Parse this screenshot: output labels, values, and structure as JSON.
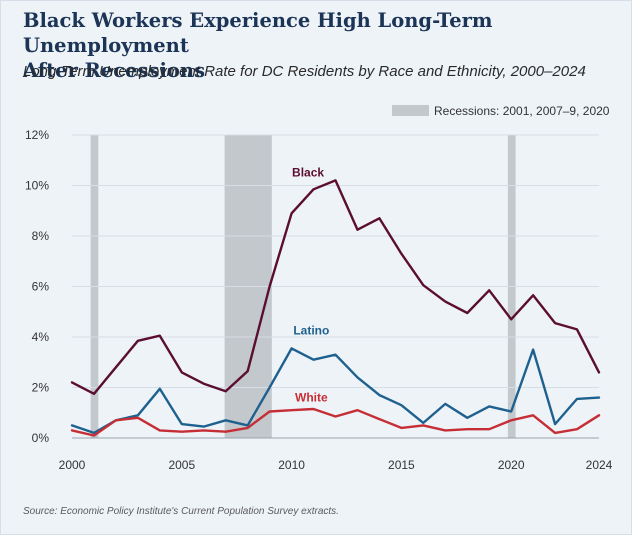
{
  "header": {
    "title_line1": "Black Workers Experience High Long-Term Unemployment",
    "title_line2": "After Recessions",
    "subtitle": "Long-Term Unemployment Rate for DC Residents by Race and Ethnicity, 2000–2024"
  },
  "source": "Source: Economic Policy Institute's Current Population Survey extracts.",
  "colors": {
    "black": "#5b0f2e",
    "latino": "#1f618e",
    "white": "#c62e35",
    "recession": "#c3c8cd",
    "grid": "#d7dde4",
    "axis_text": "#333333"
  },
  "chart_data": {
    "type": "line",
    "title": "Long-Term Unemployment Rate for DC Residents by Race and Ethnicity, 2000–2024",
    "xlabel": "",
    "ylabel": "",
    "xlim": [
      2000,
      2024
    ],
    "ylim": [
      0,
      12
    ],
    "y_ticks": [
      0,
      2,
      4,
      6,
      8,
      10,
      12
    ],
    "y_tick_labels": [
      "0%",
      "2%",
      "4%",
      "6%",
      "8%",
      "10%",
      "12%"
    ],
    "x_ticks": [
      2000,
      2005,
      2010,
      2015,
      2020,
      2024
    ],
    "x_tick_labels": [
      "2000",
      "2005",
      "2010",
      "2015",
      "2020",
      "2024"
    ],
    "grid": true,
    "legend": {
      "label": "Recessions: 2001, 2007–9, 2020",
      "position": "top-right"
    },
    "recessions": [
      {
        "start": 2000.85,
        "end": 2001.2
      },
      {
        "start": 2006.95,
        "end": 2009.1
      },
      {
        "start": 2019.85,
        "end": 2020.2
      }
    ],
    "x": [
      2000,
      2001,
      2002,
      2003,
      2004,
      2005,
      2006,
      2007,
      2008,
      2009,
      2010,
      2011,
      2012,
      2013,
      2014,
      2015,
      2016,
      2017,
      2018,
      2019,
      2020,
      2021,
      2022,
      2023,
      2024
    ],
    "series": [
      {
        "name": "Black",
        "label": "Black",
        "label_x": 2010.75,
        "label_y": 10.35,
        "values": [
          2.2,
          1.75,
          2.8,
          3.85,
          4.05,
          2.6,
          2.15,
          1.85,
          2.65,
          6.0,
          8.9,
          9.85,
          10.2,
          8.25,
          8.7,
          7.3,
          6.05,
          5.4,
          4.95,
          5.85,
          4.7,
          5.65,
          4.55,
          4.3,
          2.6
        ]
      },
      {
        "name": "Latino",
        "label": "Latino",
        "label_x": 2010.9,
        "label_y": 4.1,
        "values": [
          0.5,
          0.2,
          0.7,
          0.9,
          1.95,
          0.55,
          0.45,
          0.7,
          0.5,
          2.0,
          3.55,
          3.1,
          3.3,
          2.4,
          1.7,
          1.3,
          0.6,
          1.35,
          0.8,
          1.25,
          1.05,
          3.5,
          0.55,
          1.55,
          1.6
        ]
      },
      {
        "name": "White",
        "label": "White",
        "label_x": 2010.9,
        "label_y": 1.45,
        "values": [
          0.3,
          0.1,
          0.7,
          0.8,
          0.3,
          0.25,
          0.3,
          0.25,
          0.4,
          1.05,
          1.1,
          1.15,
          0.85,
          1.1,
          0.75,
          0.4,
          0.5,
          0.3,
          0.35,
          0.35,
          0.7,
          0.9,
          0.2,
          0.35,
          0.9
        ]
      }
    ]
  }
}
